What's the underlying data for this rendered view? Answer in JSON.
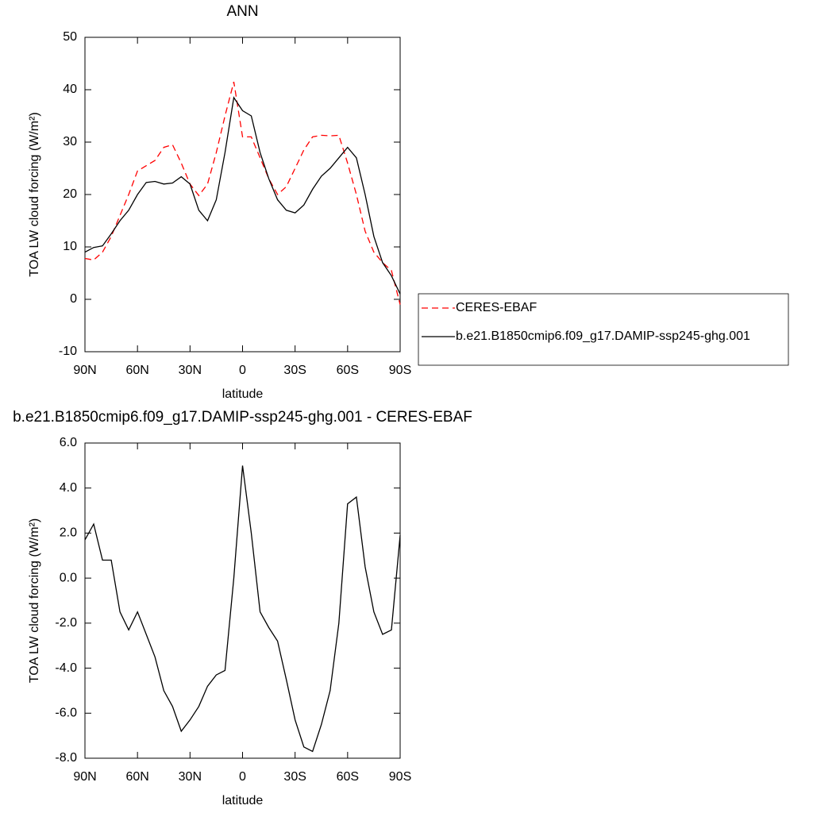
{
  "chart_data": [
    {
      "type": "line",
      "title": "ANN",
      "x_label": "latitude",
      "y_label": "TOA LW cloud forcing (W/m²)",
      "x": [
        90,
        85,
        80,
        75,
        70,
        65,
        60,
        55,
        50,
        45,
        40,
        35,
        30,
        25,
        20,
        15,
        10,
        5,
        0,
        -5,
        -10,
        -15,
        -20,
        -25,
        -30,
        -35,
        -40,
        -45,
        -50,
        -55,
        -60,
        -65,
        -70,
        -75,
        -80,
        -85,
        -90
      ],
      "xlim": [
        90,
        -90
      ],
      "xticks": [
        {
          "value": 90,
          "label": "90N"
        },
        {
          "value": 60,
          "label": "60N"
        },
        {
          "value": 30,
          "label": "30N"
        },
        0,
        {
          "value": -30,
          "label": "30S"
        },
        {
          "value": -60,
          "label": "60S"
        },
        {
          "value": -90,
          "label": "90S"
        }
      ],
      "ylim": [
        -10,
        50
      ],
      "yticks": [
        -10,
        0,
        10,
        20,
        30,
        40,
        50
      ],
      "legend": "right",
      "series": [
        {
          "name": "CERES-EBAF",
          "color": "#ff0000",
          "line_style": "dashed",
          "values": [
            7.8,
            7.5,
            9,
            12,
            16,
            20,
            24.5,
            25.5,
            26.5,
            29,
            29.5,
            26,
            22,
            19.8,
            22,
            28,
            35,
            41.5,
            31,
            31,
            27,
            23,
            20,
            21.5,
            25,
            28.5,
            31,
            31.3,
            31.2,
            31.3,
            26,
            20,
            13,
            9,
            7,
            5.5,
            -1
          ]
        },
        {
          "name": "b.e21.B1850cmip6.f09_g17.DAMIP-ssp245-ghg.001",
          "color": "#000000",
          "line_style": "solid",
          "values": [
            9,
            9.9,
            10.2,
            12.5,
            15,
            17,
            20,
            22.3,
            22.5,
            22,
            22.2,
            23.4,
            22,
            17,
            15,
            19,
            28,
            38.5,
            36,
            35,
            28,
            23,
            19,
            17,
            16.5,
            18,
            21,
            23.5,
            25,
            27,
            29,
            27,
            20,
            12,
            7,
            4.5,
            1
          ]
        }
      ]
    },
    {
      "type": "line",
      "title": "b.e21.B1850cmip6.f09_g17.DAMIP-ssp245-ghg.001 - CERES-EBAF",
      "x_label": "latitude",
      "y_label": "TOA LW cloud forcing (W/m²)",
      "x": [
        90,
        85,
        80,
        75,
        70,
        65,
        60,
        55,
        50,
        45,
        40,
        35,
        30,
        25,
        20,
        15,
        10,
        5,
        0,
        -5,
        -10,
        -15,
        -20,
        -25,
        -30,
        -35,
        -40,
        -45,
        -50,
        -55,
        -60,
        -65,
        -70,
        -75,
        -80,
        -85,
        -90
      ],
      "xlim": [
        90,
        -90
      ],
      "xticks": [
        {
          "value": 90,
          "label": "90N"
        },
        {
          "value": 60,
          "label": "60N"
        },
        {
          "value": 30,
          "label": "30N"
        },
        0,
        {
          "value": -30,
          "label": "30S"
        },
        {
          "value": -60,
          "label": "60S"
        },
        {
          "value": -90,
          "label": "90S"
        }
      ],
      "ylim": [
        -8,
        6
      ],
      "yticks": [
        {
          "value": -8,
          "label": "-8.0"
        },
        {
          "value": -6,
          "label": "-6.0"
        },
        {
          "value": -4,
          "label": "-4.0"
        },
        {
          "value": -2,
          "label": "-2.0"
        },
        {
          "value": 0,
          "label": "0.0"
        },
        {
          "value": 2,
          "label": "2.0"
        },
        {
          "value": 4,
          "label": "4.0"
        },
        {
          "value": 6,
          "label": "6.0"
        }
      ],
      "color": "#000000",
      "values": [
        1.7,
        2.4,
        0.8,
        0.8,
        -1.5,
        -2.3,
        -1.5,
        -2.5,
        -3.5,
        -5.0,
        -5.7,
        -6.8,
        -6.3,
        -5.7,
        -4.8,
        -4.3,
        -4.1,
        0.0,
        5.0,
        2.0,
        -1.5,
        -2.2,
        -2.8,
        -4.5,
        -6.3,
        -7.5,
        -7.7,
        -6.5,
        -5.0,
        -2.0,
        3.3,
        3.6,
        0.5,
        -1.5,
        -2.5,
        -2.3,
        1.9
      ]
    }
  ]
}
